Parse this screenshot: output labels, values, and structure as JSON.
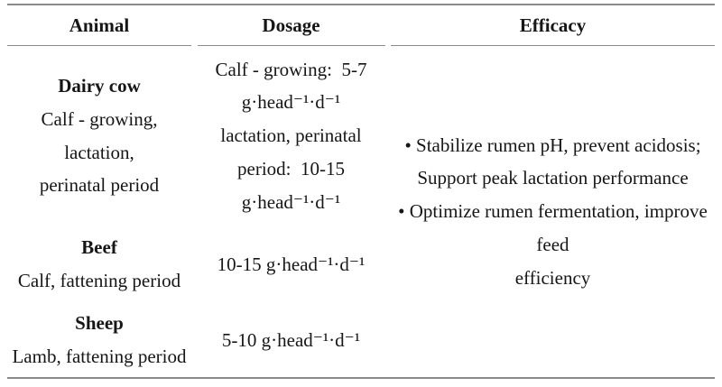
{
  "table": {
    "headers": {
      "animal": "Animal",
      "dosage": "Dosage",
      "efficacy": "Efficacy"
    },
    "rows": [
      {
        "name": "Dairy cow",
        "detail_lines": [
          "Calf - growing, lactation,",
          "perinatal period"
        ],
        "dosage_lines": [
          "Calf - growing:  5-7",
          "g·head⁻¹·d⁻¹",
          "lactation, perinatal",
          "period:  10-15",
          "g·head⁻¹·d⁻¹"
        ]
      },
      {
        "name": "Beef",
        "detail_lines": [
          "Calf, fattening period"
        ],
        "dosage_lines": [
          "10-15 g·head⁻¹·d⁻¹"
        ]
      },
      {
        "name": "Sheep",
        "detail_lines": [
          "Lamb, fattening period"
        ],
        "dosage_lines": [
          "5-10 g·head⁻¹·d⁻¹"
        ]
      }
    ],
    "efficacy_lines": [
      "• Stabilize rumen pH, prevent acidosis;",
      "Support peak lactation performance",
      "• Optimize rumen fermentation, improve feed",
      "efficiency"
    ]
  },
  "colors": {
    "background": "#ffffff",
    "text": "#161616",
    "rule": "#8a8a8a"
  }
}
